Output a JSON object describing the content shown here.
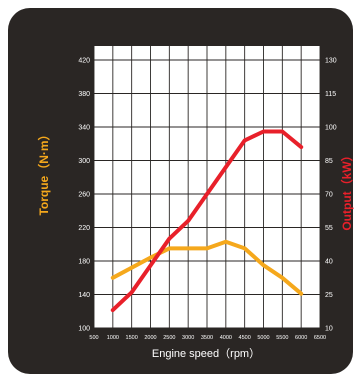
{
  "chart_data": {
    "type": "line",
    "xlabel": "Engine speed（rpm）",
    "ylabel_left": "Torque（N·m）",
    "ylabel_right": "Output（kW）",
    "x_ticks": [
      "500",
      "1000",
      "1500",
      "2000",
      "2500",
      "3000",
      "3500",
      "4000",
      "4500",
      "5000",
      "5500",
      "6000",
      "6500"
    ],
    "y_left_ticks": [
      "100",
      "140",
      "180",
      "220",
      "260",
      "300",
      "340",
      "380",
      "420"
    ],
    "y_right_ticks": [
      "10",
      "25",
      "40",
      "55",
      "70",
      "85",
      "100",
      "115",
      "130"
    ],
    "xlim": [
      500,
      6500
    ],
    "ylim_left": [
      100,
      420
    ],
    "ylim_right": [
      10,
      130
    ],
    "grid": true,
    "series": [
      {
        "axis": "left",
        "color": "#f5a81c",
        "x": [
          1000,
          1500,
          2000,
          2500,
          3000,
          3500,
          4000,
          4500,
          5000,
          5500,
          6000
        ],
        "values": [
          160,
          172,
          184,
          195,
          195,
          195,
          203,
          195,
          175,
          160,
          141
        ]
      },
      {
        "axis": "right",
        "color": "#e8202a",
        "x": [
          1000,
          1500,
          2000,
          2500,
          3000,
          3500,
          4000,
          4500,
          5000,
          5500,
          6000
        ],
        "values": [
          18,
          26,
          38,
          50,
          58,
          70,
          82,
          94,
          98,
          98,
          91
        ]
      }
    ]
  }
}
